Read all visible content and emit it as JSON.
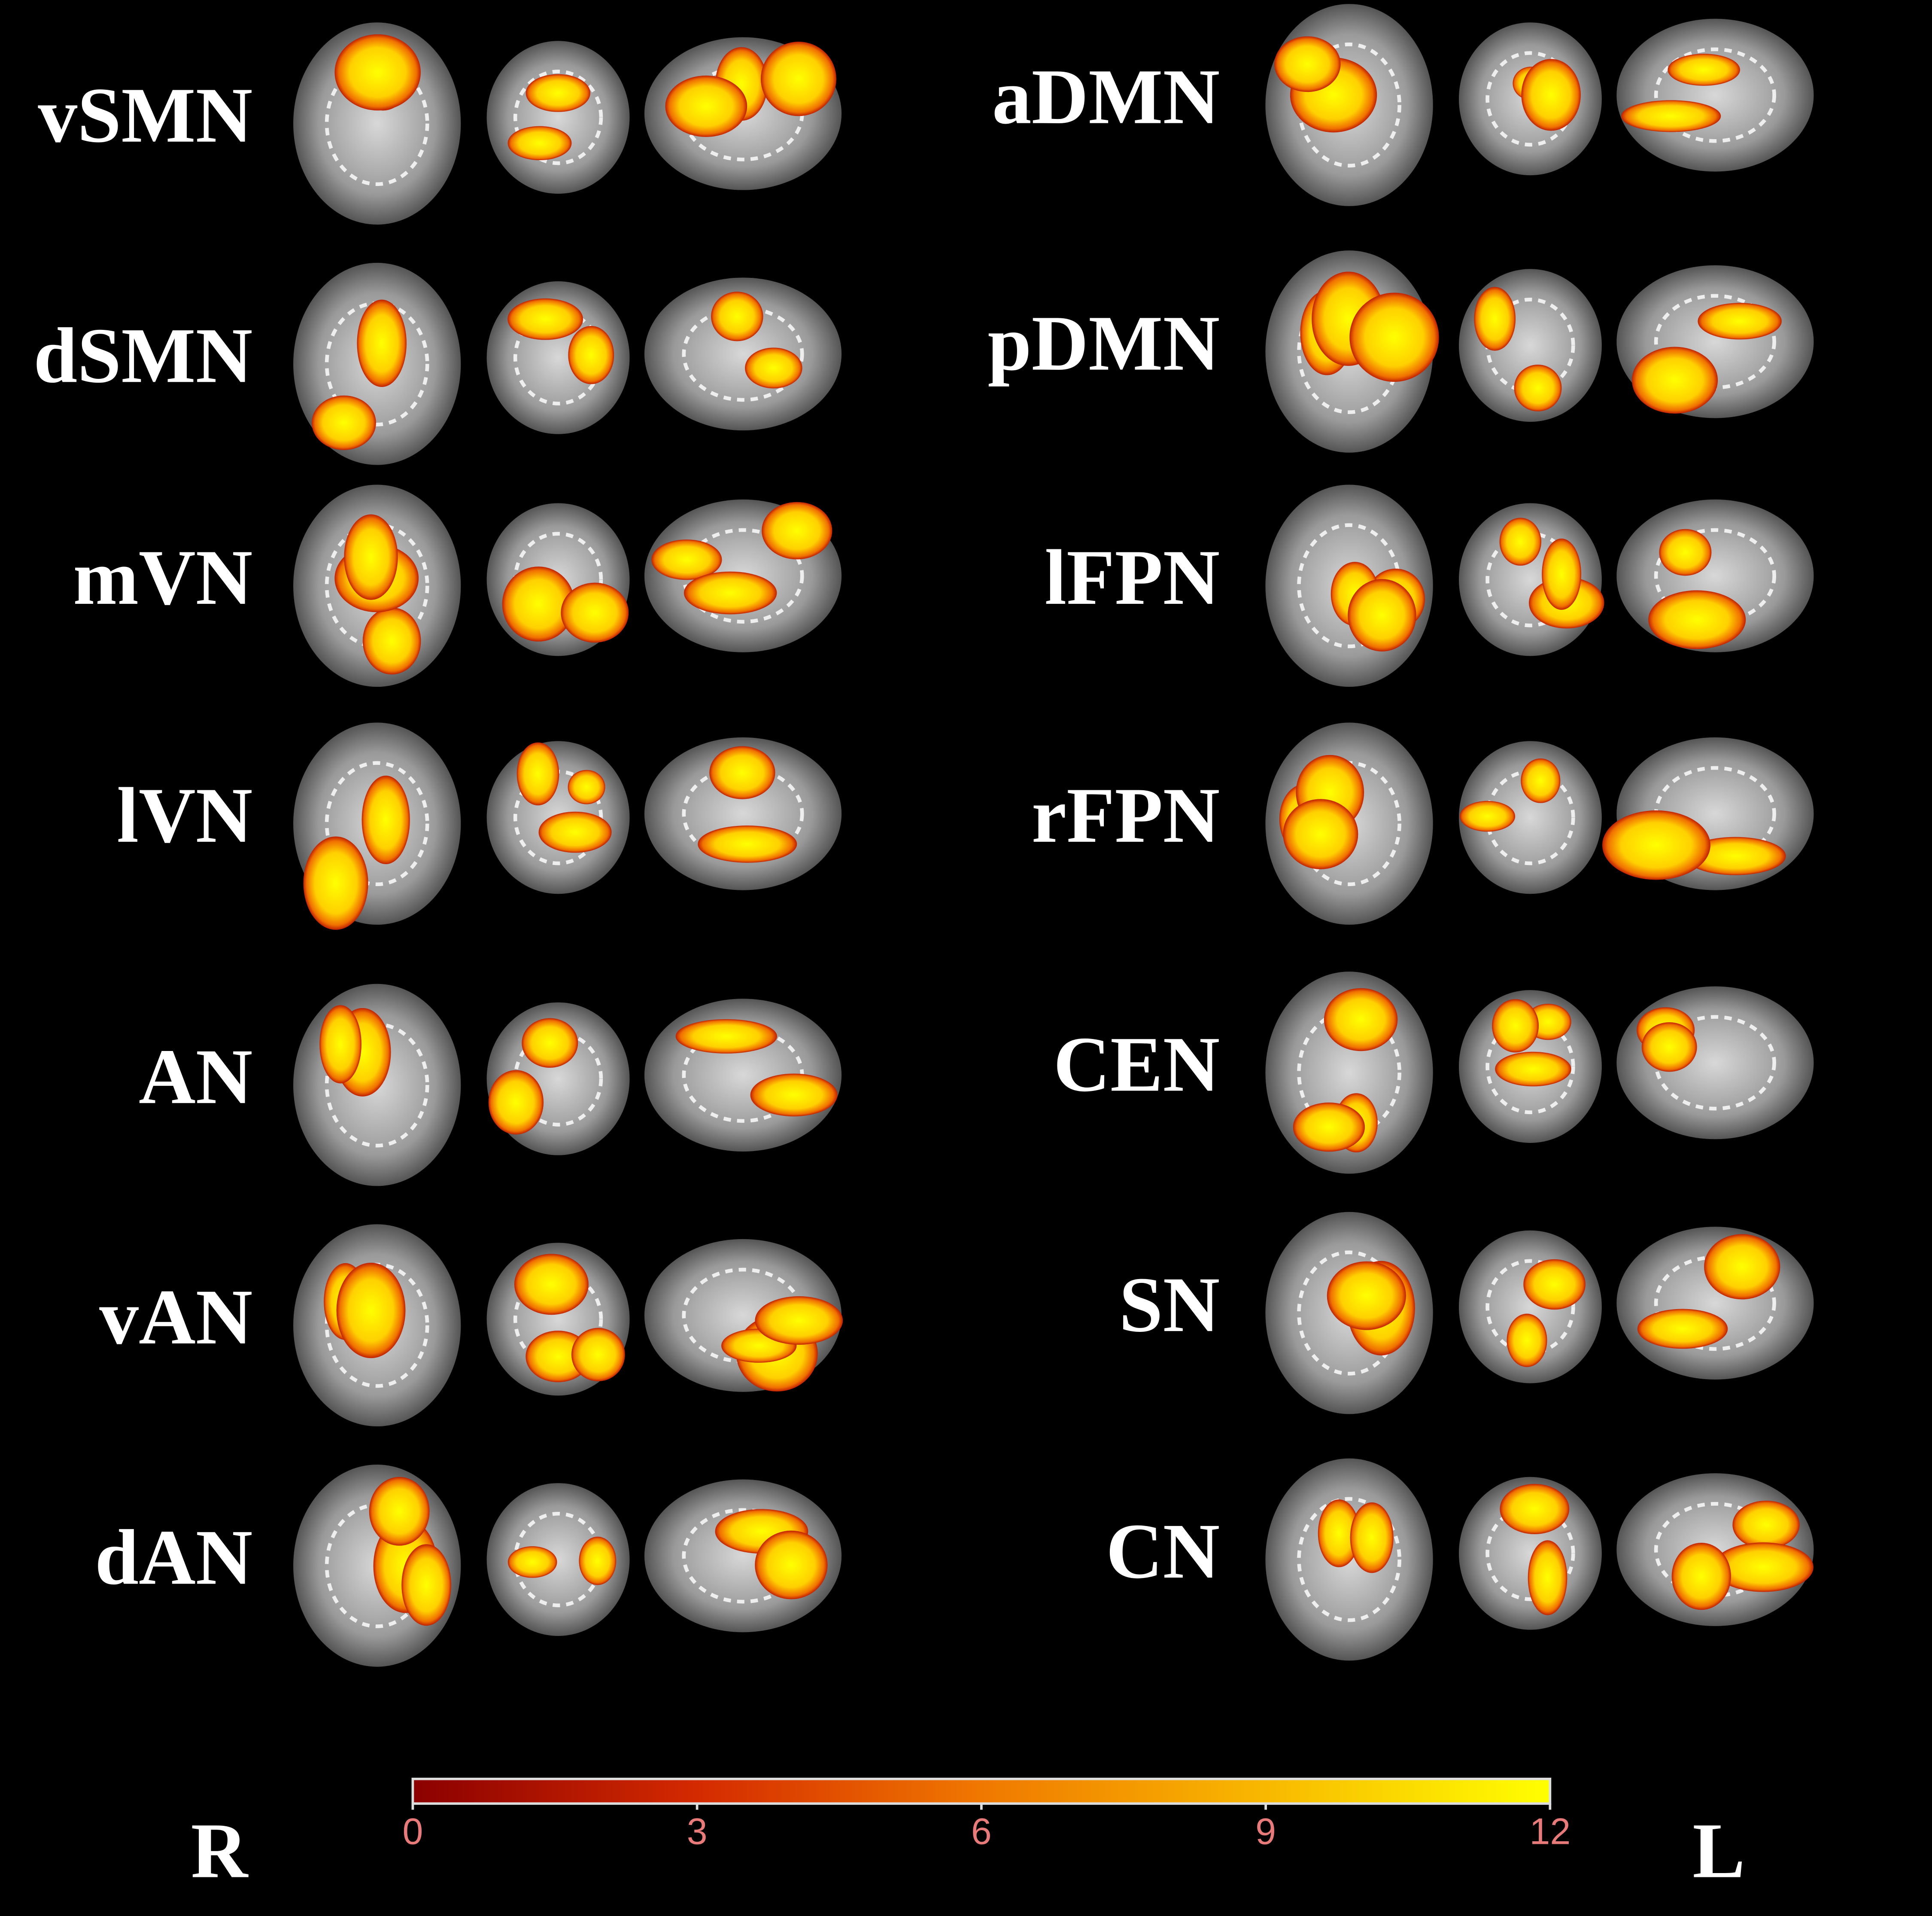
{
  "left_networks": [
    "vSMN",
    "dSMN",
    "mVN",
    "lVN",
    "AN",
    "vAN",
    "dAN"
  ],
  "right_networks": [
    "aDMN",
    "pDMN",
    "lFPN",
    "rFPN",
    "CEN",
    "SN",
    "CN"
  ],
  "colorbar": {
    "lim": [
      0,
      12
    ],
    "ticks": [
      0,
      3,
      6,
      9,
      12
    ]
  },
  "orientation": {
    "right": "R",
    "left": "L"
  }
}
